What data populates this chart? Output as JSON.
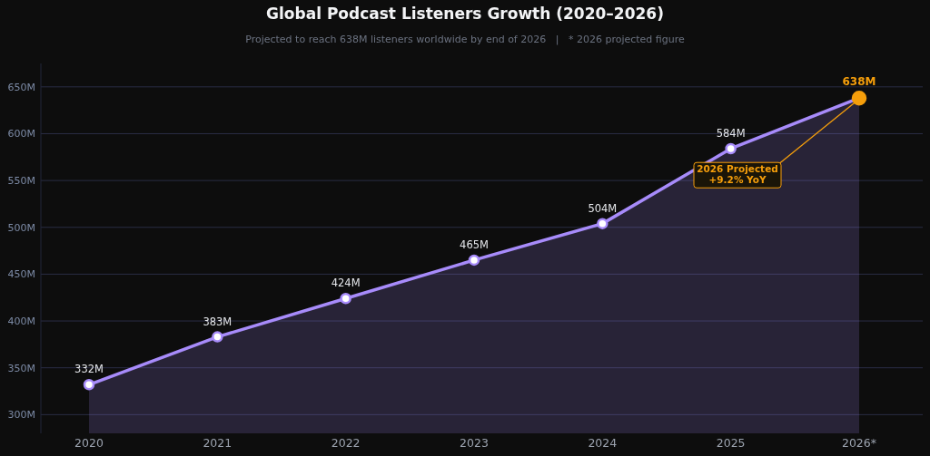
{
  "chart_data": {
    "type": "area",
    "title": "Global Podcast Listeners Growth (2020–2026)",
    "subtitle": "Projected to reach 638M listeners worldwide by end of 2026   |   * 2026 projected figure",
    "categories": [
      "2020",
      "2021",
      "2022",
      "2023",
      "2024",
      "2025",
      "2026*"
    ],
    "series": [
      {
        "color": "#a78bfa",
        "values": [
          332,
          383,
          424,
          465,
          504,
          584,
          638
        ],
        "colors": [
          "#a78bfa",
          "#a78bfa",
          "#a78bfa",
          "#a78bfa",
          "#a78bfa",
          "#a78bfa",
          "#f59e0b"
        ],
        "value_labels": [
          "332M",
          "383M",
          "424M",
          "465M",
          "504M",
          "584M",
          "638M"
        ]
      }
    ],
    "ylim": [
      280,
      675
    ],
    "yticks": [
      {
        "value": 300,
        "label": "300M"
      },
      {
        "value": 350,
        "label": "350M"
      },
      {
        "value": 400,
        "label": "400M"
      },
      {
        "value": 450,
        "label": "450M"
      },
      {
        "value": 500,
        "label": "500M"
      },
      {
        "value": 550,
        "label": "550M"
      },
      {
        "value": 600,
        "label": "600M"
      },
      {
        "value": 650,
        "label": "650M"
      }
    ],
    "grid": "y",
    "marker": "circle",
    "annotations": [
      {
        "text": "2026 Projected\n+9.2% YoY",
        "x": "2026*",
        "y": 638
      }
    ]
  }
}
